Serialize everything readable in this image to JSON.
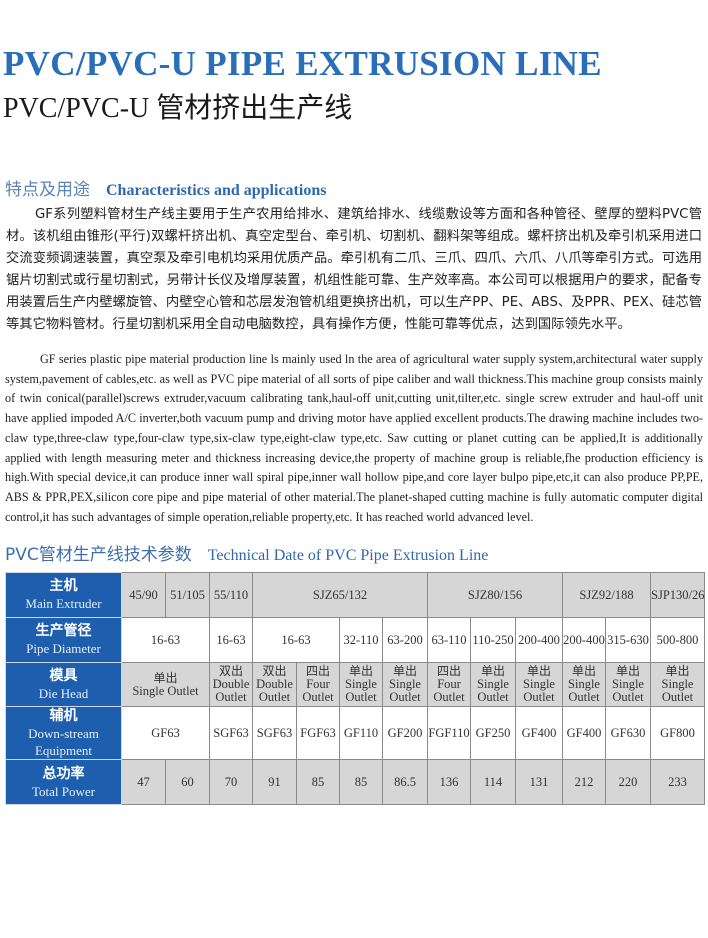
{
  "title": "PVC/PVC-U PIPE EXTRUSION LINE",
  "subtitle": "PVC/PVC-U 管材挤出生产线",
  "section1": {
    "cn": "特点及用途",
    "en": "Characteristics and applications"
  },
  "cn_paragraph": "GF系列塑料管材生产线主要用于生产农用给排水、建筑给排水、线缆敷设等方面和各种管径、壁厚的塑料PVC管材。该机组由锥形(平行)双螺杆挤出机、真空定型台、牵引机、切割机、翻料架等组成。螺杆挤出机及牵引机采用进口交流变频调速装置，真空泵及牵引电机均采用优质产品。牵引机有二爪、三爪、四爪、六爪、八爪等牵引方式。可选用锯片切割式或行星切割式，另带计长仪及增厚装置，机组性能可靠、生产效率高。本公司可以根据用户的要求，配备专用装置后生产内壁螺旋管、内壁空心管和芯层发泡管机组更换挤出机，可以生产PP、PE、ABS、及PPR、PEX、硅芯管等其它物料管材。行星切割机采用全自动电脑数控，具有操作方便，性能可靠等优点，达到国际领先水平。",
  "en_paragraph": "GF series plastic pipe material production line ls mainly used ln the area of agricultural water supply system,architectural water supply system,pavement of cables,etc. as well as PVC pipe material of all sorts of pipe caliber and wall thickness.This machine group consists mainly of twin conical(parallel)screws extruder,vacuum calibrating tank,haul-off unit,cutting unit,tilter,etc.  single screw extruder and haul-off unit have applied impoded A/C inverter,both vacuum pump and driving motor have applied excellent products.The drawing machine includes two-claw type,three-claw type,four-claw type,six-claw type,eight-claw type,etc. Saw cutting or planet cutting can be applied,It is additionally applied with length measuring meter and thickness increasing device,the property of machine group is reliable,fhe production efficiency is high.With special device,it can produce inner wall spiral pipe,inner wall hollow pipe,and core layer bulpo pipe,etc,it can also produce PP,PE, ABS & PPR,PEX,silicon core pipe and pipe material of other material.The planet-shaped cutting machine is fully automatic computer digital control,it has such advantages of simple operation,reliable property,etc. It has reached world advanced level.",
  "section2": {
    "cn": "PVC管材生产线技术参数",
    "en": "Technical Date of PVC Pipe Extrusion Line"
  },
  "colors": {
    "title": "#2a6db8",
    "header_cell": "#1d5fae",
    "gray_row": "#d6d6d6"
  },
  "table": {
    "rows": [
      {
        "name": "main-extruder",
        "cn": "主机",
        "en": "Main Extruder",
        "shade": "gray",
        "cells": [
          {
            "t": "45/90",
            "span": 1
          },
          {
            "t": "51/105",
            "span": 1
          },
          {
            "t": "55/110",
            "span": 1
          },
          {
            "t": "SJZ65/132",
            "span": 4
          },
          {
            "t": "SJZ80/156",
            "span": 3
          },
          {
            "t": "SJZ92/188",
            "span": 2
          },
          {
            "t": "SJP130/26",
            "span": 1
          }
        ]
      },
      {
        "name": "pipe-diameter",
        "cn": "生产管径",
        "en": "Pipe Diameter",
        "shade": "white",
        "cells": [
          {
            "t": "16-63",
            "span": 2
          },
          {
            "t": "16-63",
            "span": 1
          },
          {
            "t": "16-63",
            "span": 2
          },
          {
            "t": "32-110",
            "span": 1
          },
          {
            "t": "63-200",
            "span": 1
          },
          {
            "t": "63-110",
            "span": 1
          },
          {
            "t": "110-250",
            "span": 1
          },
          {
            "t": "200-400",
            "span": 1
          },
          {
            "t": "200-400",
            "span": 1
          },
          {
            "t": "315-630",
            "span": 1
          },
          {
            "t": "500-800",
            "span": 1
          }
        ]
      },
      {
        "name": "die-head",
        "cn": "模具",
        "en": "Die Head",
        "shade": "gray",
        "cells": [
          {
            "cn": "单出",
            "t": "Single Outlet",
            "span": 2
          },
          {
            "cn": "双出",
            "t": "Double Outlet",
            "span": 1
          },
          {
            "cn": "双出",
            "t": "Double Outlet",
            "span": 1
          },
          {
            "cn": "四出",
            "t": "Four Outlet",
            "span": 1
          },
          {
            "cn": "单出",
            "t": "Single Outlet",
            "span": 1
          },
          {
            "cn": "单出",
            "t": "Single Outlet",
            "span": 1
          },
          {
            "cn": "四出",
            "t": "Four Outlet",
            "span": 1
          },
          {
            "cn": "单出",
            "t": "Single Outlet",
            "span": 1
          },
          {
            "cn": "单出",
            "t": "Single Outlet",
            "span": 1
          },
          {
            "cn": "单出",
            "t": "Single Outlet",
            "span": 1
          },
          {
            "cn": "单出",
            "t": "Single Outlet",
            "span": 1
          },
          {
            "cn": "单出",
            "t": "Single Outlet",
            "span": 1
          }
        ]
      },
      {
        "name": "down-stream-equipment",
        "cn": "辅机",
        "en": "Down-stream Equipment",
        "shade": "white",
        "cells": [
          {
            "t": "GF63",
            "span": 2
          },
          {
            "t": "SGF63",
            "span": 1
          },
          {
            "t": "SGF63",
            "span": 1
          },
          {
            "t": "FGF63",
            "span": 1
          },
          {
            "t": "GF110",
            "span": 1
          },
          {
            "t": "GF200",
            "span": 1
          },
          {
            "t": "FGF110",
            "span": 1
          },
          {
            "t": "GF250",
            "span": 1
          },
          {
            "t": "GF400",
            "span": 1
          },
          {
            "t": "GF400",
            "span": 1
          },
          {
            "t": "GF630",
            "span": 1
          },
          {
            "t": "GF800",
            "span": 1
          }
        ]
      },
      {
        "name": "total-power",
        "cn": "总功率",
        "en": "Total Power",
        "shade": "gray",
        "cells": [
          {
            "t": "47",
            "span": 1
          },
          {
            "t": "60",
            "span": 1
          },
          {
            "t": "70",
            "span": 1
          },
          {
            "t": "91",
            "span": 1
          },
          {
            "t": "85",
            "span": 1
          },
          {
            "t": "85",
            "span": 1
          },
          {
            "t": "86.5",
            "span": 1
          },
          {
            "t": "136",
            "span": 1
          },
          {
            "t": "114",
            "span": 1
          },
          {
            "t": "131",
            "span": 1
          },
          {
            "t": "212",
            "span": 1
          },
          {
            "t": "220",
            "span": 1
          },
          {
            "t": "233",
            "span": 1
          }
        ]
      }
    ]
  }
}
